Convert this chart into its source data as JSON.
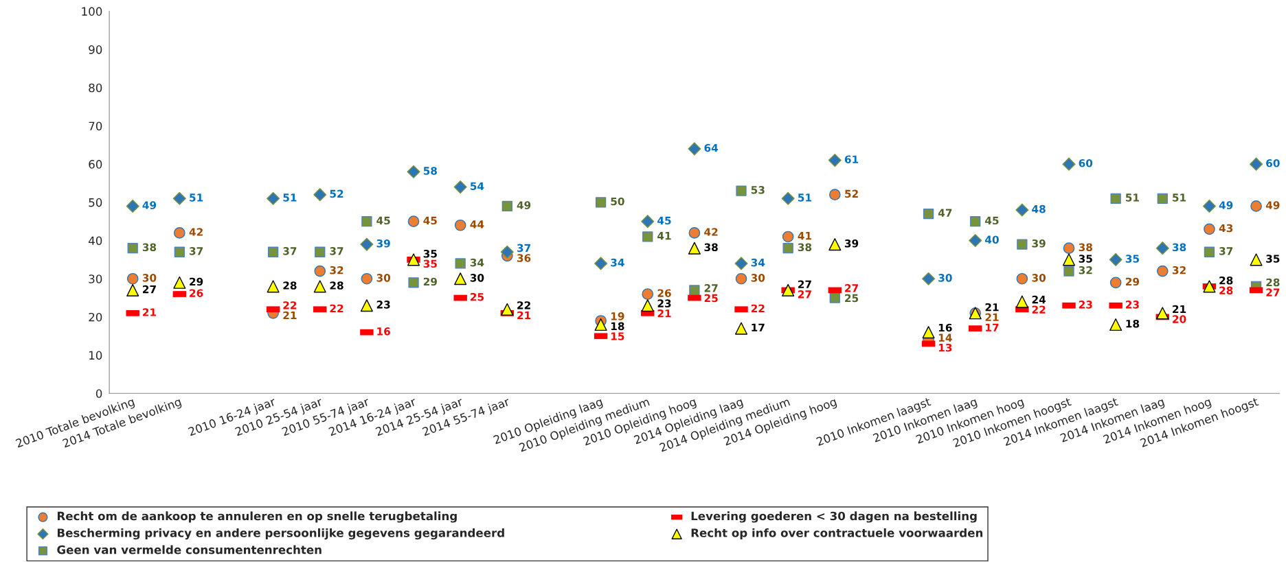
{
  "chart_data": {
    "type": "scatter",
    "categories": [
      "2010 Totale bevolking",
      "2014 Totale bevolking",
      null,
      "2010 16-24 jaar",
      "2010 25-54 jaar",
      "2010 55-74 jaar",
      "2014 16-24 jaar",
      "2014 25-54 jaar",
      "2014 55-74 jaar",
      null,
      "2010 Opleiding laag",
      "2010 Opleiding medium",
      "2010 Opleiding hoog",
      "2014 Opleiding laag",
      "2014 Opleiding medium",
      "2014 Opleiding hoog",
      null,
      "2010 Inkomen laagst",
      "2010 Inkomen laag",
      "2010 Inkomen hoog",
      "2010 Inkomen hoogst",
      "2014 Inkomen laagst",
      "2014 Inkomen laag",
      "2014 Inkomen hoog",
      "2014 Inkomen hoogst"
    ],
    "series": [
      {
        "name": "Recht om de aankoop te annuleren en op snelle terugbetaling",
        "color": "#ed7d31",
        "marker": "circle",
        "values": [
          30,
          42,
          null,
          21,
          32,
          30,
          45,
          44,
          36,
          null,
          19,
          26,
          42,
          30,
          41,
          52,
          null,
          14,
          21,
          30,
          38,
          29,
          32,
          43,
          49
        ]
      },
      {
        "name": "Bescherming privacy en andere persoonlijke gegevens gegarandeerd",
        "color": "#2e75b6",
        "marker": "diamond",
        "values": [
          49,
          51,
          null,
          51,
          52,
          39,
          58,
          54,
          37,
          null,
          34,
          45,
          64,
          34,
          51,
          61,
          null,
          30,
          40,
          48,
          60,
          35,
          38,
          49,
          60
        ]
      },
      {
        "name": "Geen van vermelde consumentenrechten",
        "color": "#77933c",
        "marker": "square",
        "values": [
          38,
          37,
          null,
          37,
          37,
          45,
          29,
          34,
          49,
          null,
          50,
          41,
          27,
          53,
          38,
          25,
          null,
          47,
          45,
          39,
          32,
          51,
          51,
          37,
          28
        ]
      },
      {
        "name": "Levering goederen < 30 dagen na bestelling",
        "color": "#ff0000",
        "marker": "square",
        "values": [
          21,
          26,
          null,
          22,
          22,
          16,
          35,
          25,
          21,
          null,
          15,
          21,
          25,
          22,
          27,
          27,
          null,
          13,
          17,
          22,
          23,
          23,
          20,
          28,
          27
        ]
      },
      {
        "name": "Recht op info over contractuele voorwaarden",
        "color": "#ffff00",
        "marker": "triangle",
        "values": [
          27,
          29,
          null,
          28,
          28,
          23,
          35,
          30,
          22,
          null,
          18,
          23,
          38,
          17,
          27,
          39,
          null,
          16,
          21,
          24,
          35,
          18,
          21,
          28,
          35
        ]
      }
    ],
    "ylim": [
      0,
      100
    ],
    "yticks": [
      0,
      10,
      20,
      30,
      40,
      50,
      60,
      70,
      80,
      90,
      100
    ],
    "grid": false,
    "legend": "bottom",
    "data_labels": true
  }
}
